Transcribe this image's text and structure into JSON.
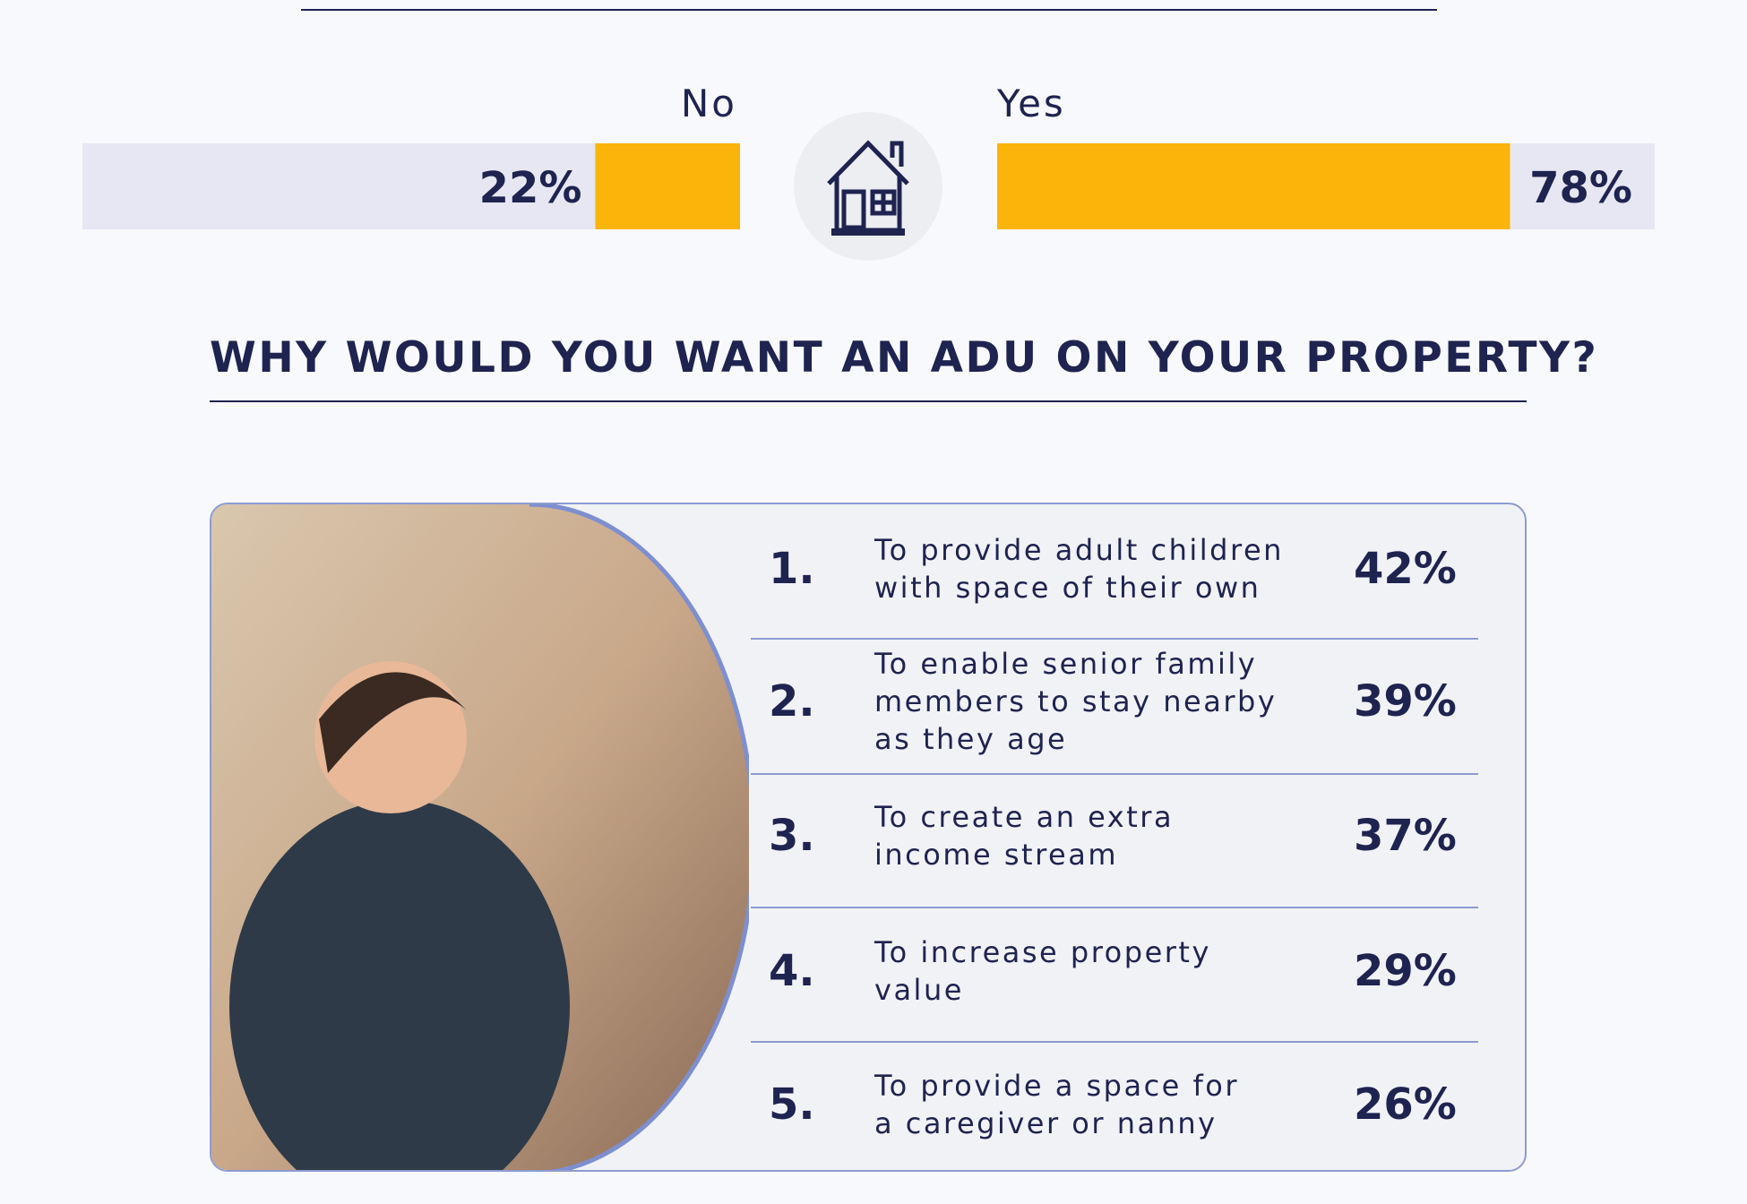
{
  "poll": {
    "xlim": [
      0,
      100
    ],
    "color": "#fbb40a",
    "track": "#e6e7f2",
    "options": [
      {
        "label": "No",
        "value": 22,
        "value_label": "22%"
      },
      {
        "label": "Yes",
        "value": 78,
        "value_label": "78%"
      }
    ]
  },
  "reasons": {
    "title": "WHY WOULD YOU WANT AN ADU ON YOUR PROPERTY?",
    "items": [
      {
        "rank": "1.",
        "lines": [
          "To provide adult children",
          "with space of their own"
        ],
        "percent": "42%"
      },
      {
        "rank": "2.",
        "lines": [
          "To enable senior family",
          "members to stay nearby",
          "as they age"
        ],
        "percent": "39%"
      },
      {
        "rank": "3.",
        "lines": [
          "To create an extra",
          "income stream"
        ],
        "percent": "37%"
      },
      {
        "rank": "4.",
        "lines": [
          "To increase property",
          "value"
        ],
        "percent": "29%"
      },
      {
        "rank": "5.",
        "lines": [
          "To provide a space for",
          "a caregiver or nanny"
        ],
        "percent": "26%"
      }
    ]
  }
}
